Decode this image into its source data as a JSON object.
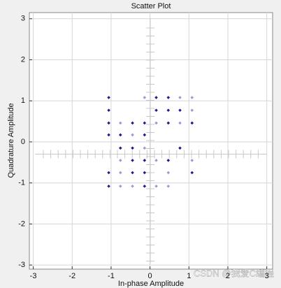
{
  "chart_data": {
    "type": "scatter",
    "title": "Scatter Plot",
    "x_label": "In-phase Amplitude",
    "y_label": "Quadrature Amplitude",
    "xlim": [
      -3.1,
      3.15
    ],
    "ylim": [
      -3.1,
      3.15
    ],
    "xticks": [
      -3,
      -2,
      -1,
      0,
      1,
      2,
      3
    ],
    "yticks": [
      -3,
      -2,
      -1,
      0,
      1,
      2,
      3
    ],
    "grid": true,
    "series": [
      {
        "color": "#1c1c8e",
        "x": [
          -1.06,
          -1.06,
          -1.06,
          -1.06,
          -0.76,
          -0.45,
          -0.14,
          -0.14,
          0.16,
          0.47,
          0.16,
          0.47,
          0.77,
          0.47,
          1.08,
          -0.45,
          -0.76,
          0.77,
          0.47,
          -0.45,
          -0.14,
          -1.06,
          -0.45,
          -0.14,
          1.08,
          -1.06,
          -0.14
        ],
        "y": [
          1.08,
          0.77,
          0.46,
          0.17,
          0.17,
          0.46,
          0.46,
          0.17,
          1.08,
          1.08,
          0.77,
          0.77,
          0.77,
          0.46,
          0.46,
          -0.15,
          -0.15,
          -0.15,
          -0.45,
          -0.45,
          -0.45,
          -0.75,
          -0.75,
          -0.75,
          -0.75,
          -1.08,
          -1.08
        ]
      },
      {
        "color": "#9a9ad4",
        "x": [
          -0.76,
          -0.45,
          0.16,
          0.77,
          1.08,
          0.77,
          1.08,
          -0.14,
          -0.76,
          -0.14,
          0.16,
          1.08,
          0.47,
          -0.76,
          -0.76,
          -0.45,
          0.16,
          0.47
        ],
        "y": [
          0.46,
          0.17,
          0.46,
          0.46,
          0.77,
          1.08,
          1.08,
          1.08,
          -0.45,
          -0.15,
          -0.45,
          -0.45,
          -0.75,
          -0.75,
          -1.08,
          -1.08,
          -1.08,
          -1.08
        ]
      }
    ]
  },
  "watermark": "CSDN @我爱C编程"
}
